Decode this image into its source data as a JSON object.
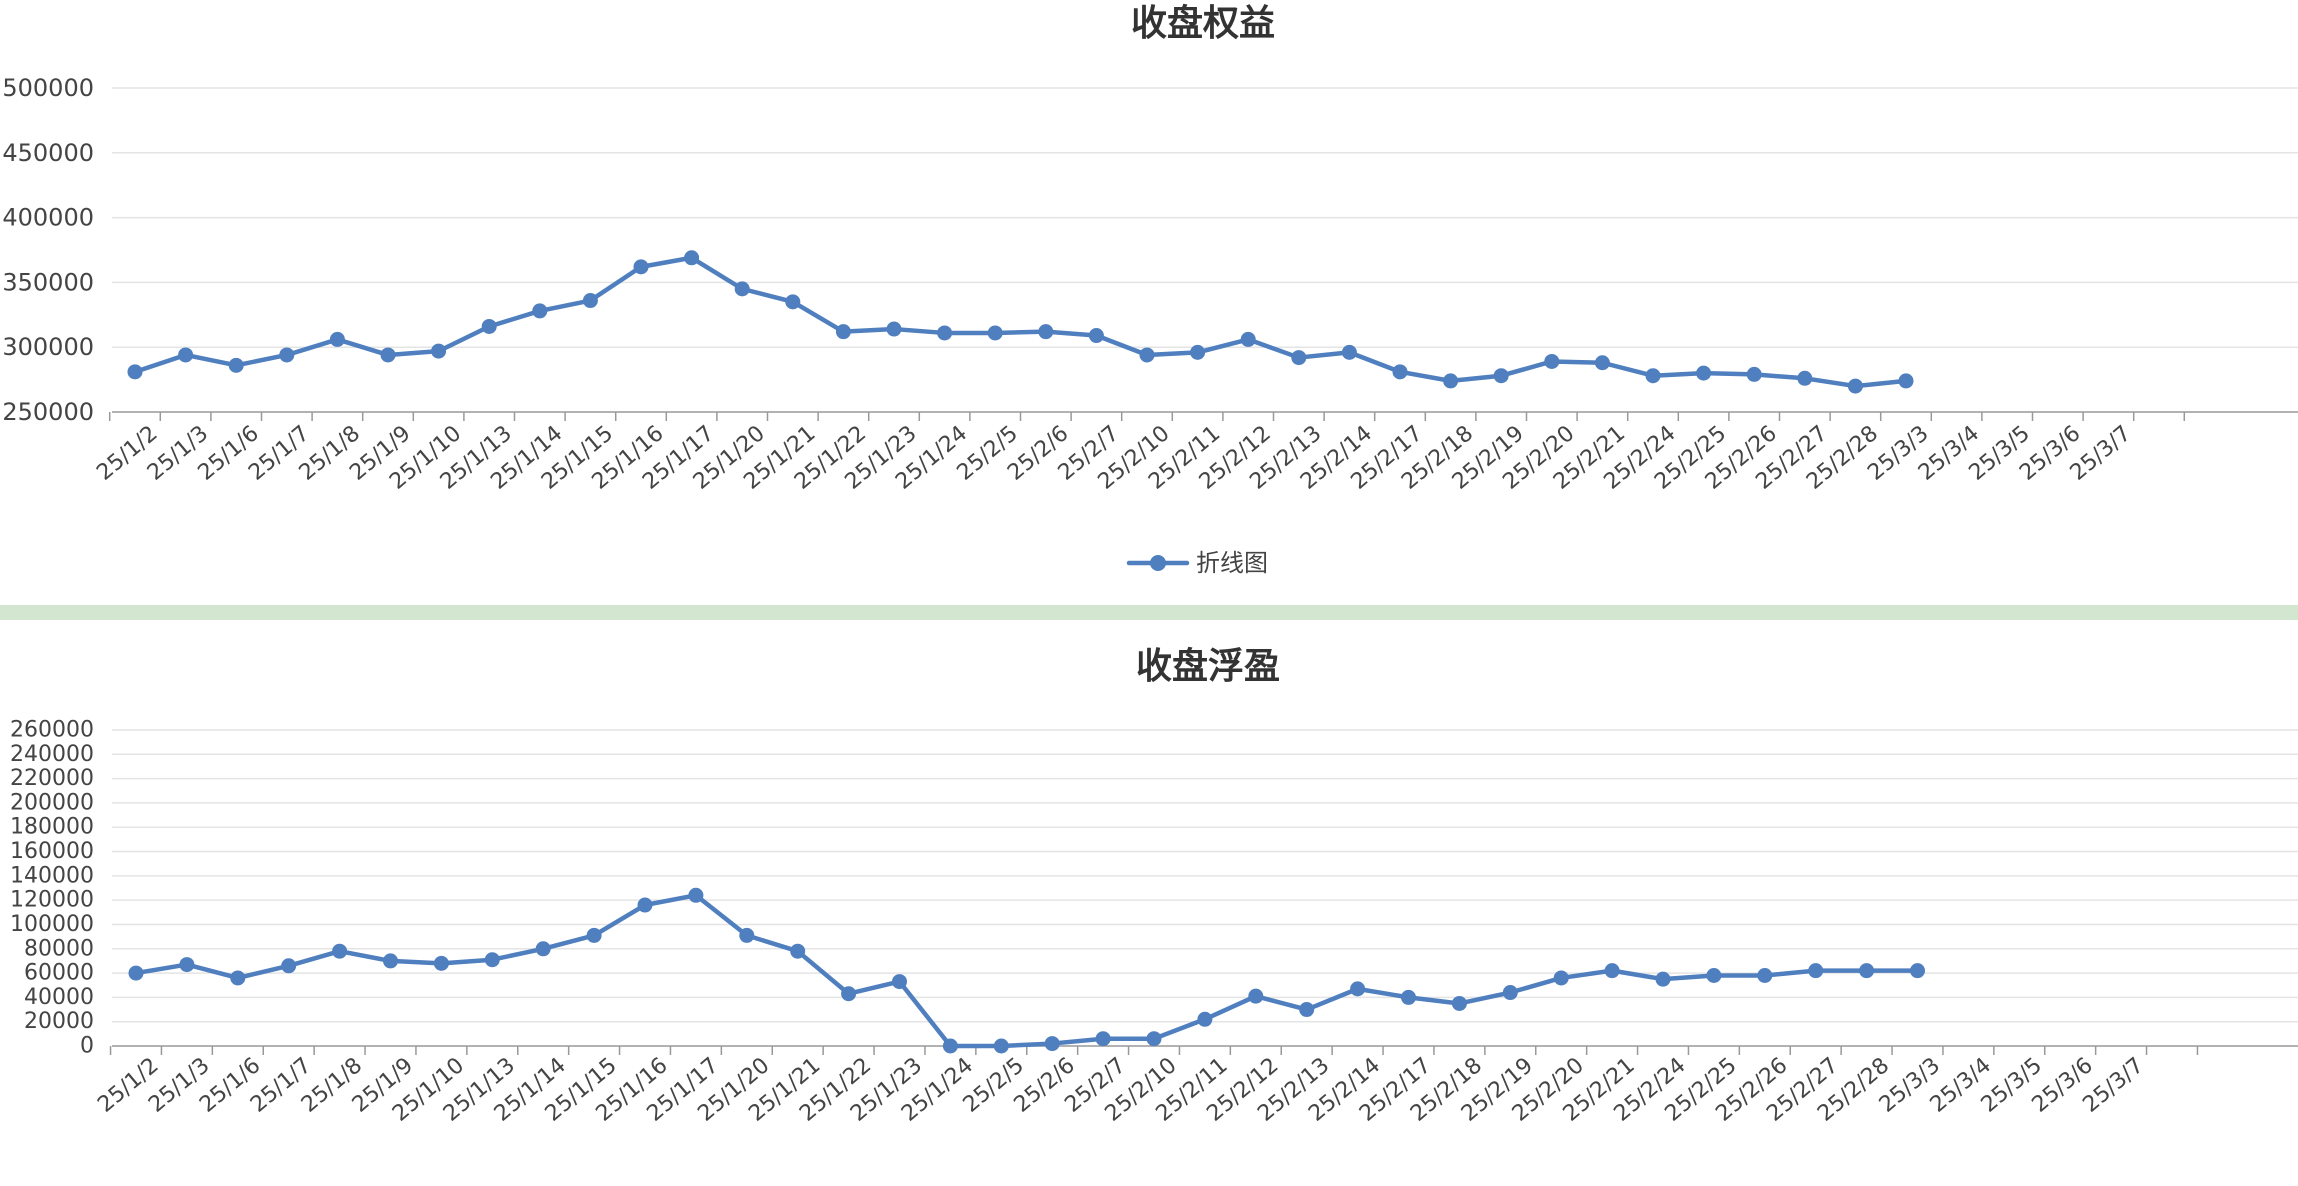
{
  "colors": {
    "series": "#4f7fbf",
    "grid": "#e4e4e4",
    "axis": "#999999",
    "text": "#444444",
    "title": "#333333",
    "separator": "#d3e6d0"
  },
  "chart_data": [
    {
      "type": "line",
      "title": "收盘权益",
      "categories": [
        "25/1/2",
        "25/1/3",
        "25/1/6",
        "25/1/7",
        "25/1/8",
        "25/1/9",
        "25/1/10",
        "25/1/13",
        "25/1/14",
        "25/1/15",
        "25/1/16",
        "25/1/17",
        "25/1/20",
        "25/1/21",
        "25/1/22",
        "25/1/23",
        "25/1/24",
        "25/2/5",
        "25/2/6",
        "25/2/7",
        "25/2/10",
        "25/2/11",
        "25/2/12",
        "25/2/13",
        "25/2/14",
        "25/2/17",
        "25/2/18",
        "25/2/19",
        "25/2/20",
        "25/2/21",
        "25/2/24",
        "25/2/25",
        "25/2/26",
        "25/2/27",
        "25/2/28",
        "25/3/3",
        "25/3/4",
        "25/3/5",
        "25/3/6",
        "25/3/7"
      ],
      "yticks": [
        250000,
        300000,
        350000,
        400000,
        450000,
        500000
      ],
      "ylim": [
        250000,
        500000
      ],
      "legend": {
        "label": "折线图",
        "position": "bottom-center"
      },
      "series": [
        {
          "name": "折线图",
          "values": [
            281000,
            294000,
            286000,
            294000,
            306000,
            294000,
            297000,
            316000,
            328000,
            336000,
            362000,
            369000,
            345000,
            335000,
            312000,
            314000,
            311000,
            311000,
            312000,
            309000,
            294000,
            296000,
            306000,
            292000,
            296000,
            281000,
            274000,
            278000,
            289000,
            288000,
            278000,
            280000,
            279000,
            276000,
            270000,
            274000,
            null,
            null,
            null,
            null
          ]
        }
      ]
    },
    {
      "type": "line",
      "title": "收盘浮盈",
      "categories": [
        "25/1/2",
        "25/1/3",
        "25/1/6",
        "25/1/7",
        "25/1/8",
        "25/1/9",
        "25/1/10",
        "25/1/13",
        "25/1/14",
        "25/1/15",
        "25/1/16",
        "25/1/17",
        "25/1/20",
        "25/1/21",
        "25/1/22",
        "25/1/23",
        "25/1/24",
        "25/2/5",
        "25/2/6",
        "25/2/7",
        "25/2/10",
        "25/2/11",
        "25/2/12",
        "25/2/13",
        "25/2/14",
        "25/2/17",
        "25/2/18",
        "25/2/19",
        "25/2/20",
        "25/2/21",
        "25/2/24",
        "25/2/25",
        "25/2/26",
        "25/2/27",
        "25/2/28",
        "25/3/3",
        "25/3/4",
        "25/3/5",
        "25/3/6",
        "25/3/7"
      ],
      "yticks": [
        0,
        20000,
        40000,
        60000,
        80000,
        100000,
        120000,
        140000,
        160000,
        180000,
        200000,
        220000,
        240000,
        260000
      ],
      "ylim": [
        0,
        260000
      ],
      "series": [
        {
          "values": [
            60000,
            67000,
            56000,
            66000,
            78000,
            70000,
            68000,
            71000,
            80000,
            91000,
            116000,
            124000,
            91000,
            78000,
            43000,
            53000,
            0,
            0,
            2000,
            6000,
            6000,
            22000,
            41000,
            30000,
            47000,
            40000,
            35000,
            44000,
            56000,
            62000,
            55000,
            58000,
            58000,
            62000,
            62000,
            62000,
            null,
            null,
            null,
            null
          ]
        }
      ]
    }
  ]
}
